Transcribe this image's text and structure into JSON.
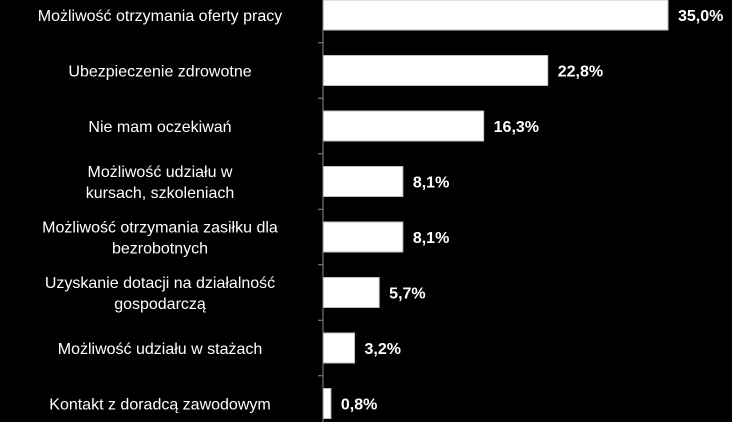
{
  "chart_data": {
    "type": "bar",
    "orientation": "horizontal",
    "title": "",
    "xlabel": "",
    "ylabel": "",
    "grid": false,
    "legend": "none",
    "categories": [
      [
        "Możliwość otrzymania oferty pracy"
      ],
      [
        "Ubezpieczenie zdrowotne"
      ],
      [
        "Nie mam oczekiwań"
      ],
      [
        "Możliwość udziału w",
        "kursach, szkoleniach"
      ],
      [
        "Możliwość otrzymania zasiłku dla",
        "bezrobotnych"
      ],
      [
        "Uzyskanie dotacji na działalność",
        "gospodarczą"
      ],
      [
        "Możliwość udziału w stażach"
      ],
      [
        "Kontakt z doradcą zawodowym"
      ]
    ],
    "values": [
      35.0,
      22.8,
      16.3,
      8.1,
      8.1,
      5.7,
      3.2,
      0.8
    ],
    "value_labels": [
      "35,0%",
      "22,8%",
      "16,3%",
      "8,1%",
      "8,1%",
      "5,7%",
      "3,2%",
      "0,8%"
    ],
    "unit": "%",
    "xlim": [
      0,
      35.0
    ],
    "colors": {
      "background": "#000000",
      "bar": "#ffffff",
      "text": "#ffffff",
      "axis": "#8c8c8c"
    }
  }
}
